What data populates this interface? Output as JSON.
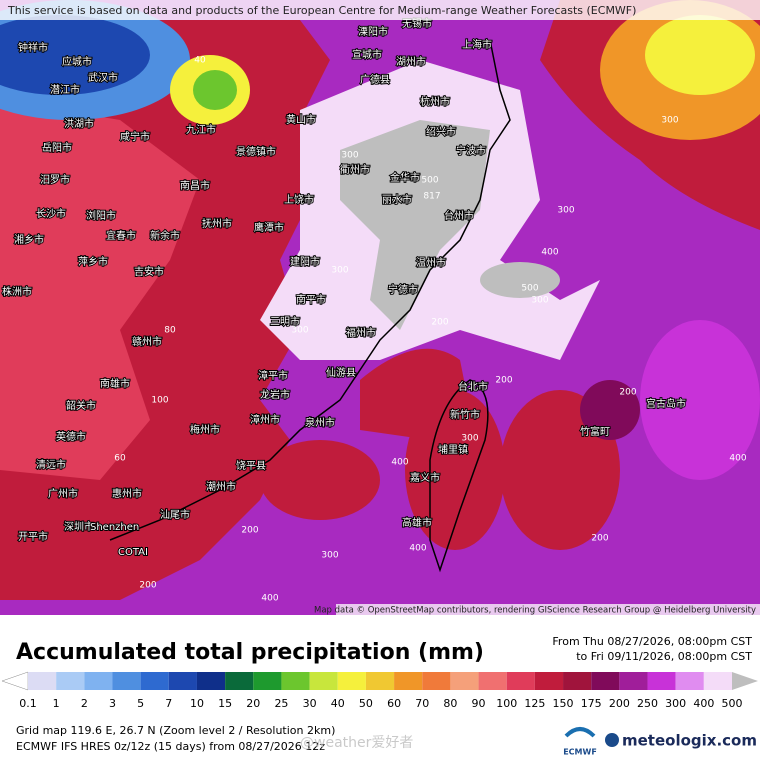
{
  "banner": "This service is based on data and products of the European Centre for Medium-range Weather Forecasts (ECMWF)",
  "map": {
    "attribution": "Map data © OpenStreetMap contributors, rendering GIScience Research Group @ Heidelberg University",
    "city_labels": [
      "钟祥市",
      "应城市",
      "武汉市",
      "潜江市",
      "洪湖市",
      "咸宁市",
      "岳阳市",
      "汨罗市",
      "长沙市",
      "浏阳市",
      "湘乡市",
      "萍乡市",
      "株洲市",
      "宜春市",
      "新余市",
      "吉安市",
      "抚州市",
      "南昌市",
      "九江市",
      "景德镇市",
      "上饶市",
      "鹰潭市",
      "赣州市",
      "南雄市",
      "韶关市",
      "英德市",
      "清远市",
      "广州市",
      "惠州市",
      "深圳市",
      "Shenzhen",
      "COTAI",
      "开平市",
      "汕尾市",
      "潮州市",
      "饶平县",
      "梅州市",
      "漳州市",
      "龙岩市",
      "泉州市",
      "仙游县",
      "福州市",
      "宁德市",
      "温州市",
      "台州市",
      "宁波市",
      "上海市",
      "湖州市",
      "杭州市",
      "绍兴市",
      "台北市",
      "新竹市",
      "埔里镇",
      "嘉义市",
      "高雄市",
      "宫古岛市",
      "竹富町",
      "无锡市",
      "溧阳市",
      "宣城市",
      "广德县",
      "黄山市",
      "衢州市",
      "金华市",
      "丽水市",
      "南平市",
      "三明市",
      "建阳市",
      "漳平市"
    ],
    "contour_labels": [
      "500",
      "817",
      "300",
      "400",
      "300",
      "500",
      "300",
      "200",
      "300",
      "400",
      "200",
      "300",
      "400",
      "300",
      "200",
      "200",
      "400",
      "200",
      "300",
      "300",
      "400",
      "200",
      "100",
      "60",
      "80",
      "40"
    ]
  },
  "legend": {
    "title": "Accumulated total precipitation (mm)",
    "period_from": "From Thu 08/27/2026, 08:00pm CST",
    "period_to": "to Fri 09/11/2026, 08:00pm CST",
    "scale_values": [
      0.1,
      1,
      2,
      3,
      5,
      7,
      10,
      15,
      20,
      25,
      30,
      40,
      50,
      60,
      70,
      80,
      90,
      100,
      125,
      150,
      175,
      200,
      250,
      300,
      400,
      500
    ],
    "colors": [
      "#ffffff",
      "#dcdcf4",
      "#aacbf5",
      "#7fb2f0",
      "#4f8fe0",
      "#2e6ad0",
      "#1d48b0",
      "#0f2f8a",
      "#0a6a3a",
      "#1e9a2e",
      "#6cc62e",
      "#c8e63c",
      "#f5f03c",
      "#f0c832",
      "#f09628",
      "#f07a3a",
      "#f5a07a",
      "#f07070",
      "#e03c5a",
      "#c01c3c",
      "#a0143c",
      "#800a5a",
      "#a01e9a",
      "#c832d8",
      "#e08cf0",
      "#f4dcf8",
      "#bebebe"
    ]
  },
  "footer": {
    "grid_info": "Grid map 119.6 E, 26.7 N (Zoom level 2 / Resolution 2km)",
    "model_info": "ECMWF IFS HRES 0z/12z (15 days) from 08/27/2026 12z",
    "watermark": "@weather爱好者",
    "ecmwf_logo": "ECMWF",
    "meteologix_logo": "meteologix.com"
  }
}
